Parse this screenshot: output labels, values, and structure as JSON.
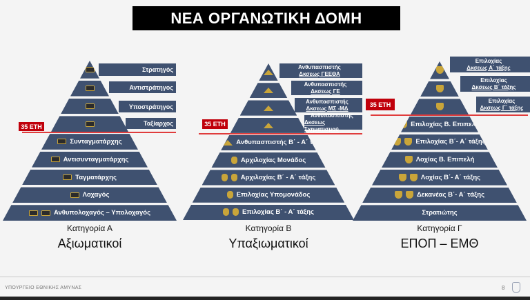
{
  "title": "ΝΕΑ ΟΡΓΑΝΩΤΙΚΗ ΔΟΜΗ",
  "threshold_label": "35 ΕΤΗ",
  "colors": {
    "pyramid": "#3f5170",
    "threshold": "#c0000b",
    "insignia": "#c9a53a"
  },
  "pyramids": [
    {
      "category": "Κατηγορία Α",
      "group": "Αξιωματικοί",
      "side_boxes": [
        {
          "l1": "Στρατηγός"
        },
        {
          "l1": "Αντιστράτηγος"
        },
        {
          "l1": "Υποστράτηγος"
        },
        {
          "l1": "Ταξίαρχος"
        }
      ],
      "rows": [
        {
          "label": "",
          "insignia": "bar",
          "count": 1
        },
        {
          "label": "",
          "insignia": "bar",
          "count": 1
        },
        {
          "label": "",
          "insignia": "bar",
          "count": 1
        },
        {
          "label": "",
          "insignia": "bar",
          "count": 1
        },
        {
          "label": "Συνταγματάρχης",
          "insignia": "bar",
          "count": 1
        },
        {
          "label": "Αντισυνταγματάρχης",
          "insignia": "bar",
          "count": 1
        },
        {
          "label": "Ταγματάρχης",
          "insignia": "bar",
          "count": 1
        },
        {
          "label": "Λοχαγός",
          "insignia": "bar",
          "count": 1
        },
        {
          "label": "Ανθυπολοχαγός – Υπολοχαγός",
          "insignia": "bar",
          "count": 2
        }
      ]
    },
    {
      "category": "Κατηγορία Β",
      "group": "Υπαξιωματικοί",
      "side_boxes": [
        {
          "l1": "Ανθυπασπιστής",
          "l2": "Δκσεως ΓΕΕΘΑ"
        },
        {
          "l1": "Ανθυπασπιστής",
          "l2": "Δκσεως ΓΕ"
        },
        {
          "l1": "Ανθυπασπιστής",
          "l2": "Δκσεως ΜΣ -ΜΔ"
        },
        {
          "l1": "Ανθυπασπιστής",
          "l2": "Δκσεως Σχηματισμού"
        }
      ],
      "rows": [
        {
          "label": "",
          "insignia": "tri",
          "count": 1
        },
        {
          "label": "",
          "insignia": "tri",
          "count": 1
        },
        {
          "label": "",
          "insignia": "tri",
          "count": 1
        },
        {
          "label": "",
          "insignia": "tri",
          "count": 1
        },
        {
          "label": "Ανθυπασπιστής Β΄ - Α΄ τάξης",
          "insignia": "tri",
          "count": 2
        },
        {
          "label": "Αρχιλοχίας Μονάδος",
          "insignia": "shield",
          "count": 1
        },
        {
          "label": "Αρχιλοχίας Β΄ - Α΄ τάξης",
          "insignia": "shield",
          "count": 2
        },
        {
          "label": "Επιλοχίας Υπομονάδος",
          "insignia": "shield",
          "count": 1
        },
        {
          "label": "Επιλοχίας Β΄ - Α΄ τάξης",
          "insignia": "shield",
          "count": 2
        }
      ]
    },
    {
      "category": "Κατηγορία Γ",
      "group": "ΕΠΟΠ – ΕΜΘ",
      "side_boxes": [
        {
          "l1": "Επιλοχίας",
          "l2": "Δκσεως Α΄ τάξης"
        },
        {
          "l1": "Επιλοχίας",
          "l2": "Δκσεως Β΄ τάξης"
        },
        {
          "l1": "Επιλοχίας",
          "l2": "Δκσεως Γ΄ τάξης"
        }
      ],
      "rows": [
        {
          "label": "",
          "insignia": "chev",
          "count": 1
        },
        {
          "label": "",
          "insignia": "chev",
          "count": 1
        },
        {
          "label": "",
          "insignia": "chev",
          "count": 1
        },
        {
          "label": "Επιλοχίας Β. Επιπελή",
          "insignia": "chev",
          "count": 1
        },
        {
          "label": "Επιλοχίας Β΄- Α΄ τάξης",
          "insignia": "chev",
          "count": 2
        },
        {
          "label": "Λοχίας Β. Επιπελή",
          "insignia": "chev",
          "count": 1
        },
        {
          "label": "Λοχίας Β΄- Α΄ τάξης",
          "insignia": "chev",
          "count": 2
        },
        {
          "label": "Δεκανέας Β΄- Α΄ τάξης",
          "insignia": "chev",
          "count": 2
        },
        {
          "label": "Στρατιώτης",
          "insignia": "none",
          "count": 0
        }
      ]
    }
  ],
  "footer": {
    "ministry": "ΥΠΟΥΡΓΕΙΟ ΕΘΝΙΚΗΣ ΑΜΥΝΑΣ",
    "page": "8"
  }
}
